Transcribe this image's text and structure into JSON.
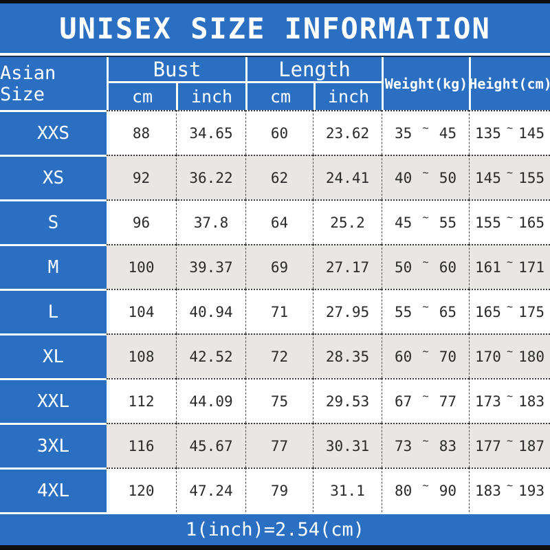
{
  "title": "UNISEX SIZE INFORMATION",
  "footer_note": "1(inch)=2.54(cm)",
  "symbols": {
    "tilde": "~"
  },
  "colors": {
    "primary_blue": "#2b6fc3",
    "row_alt_gray": "#e8e7e4",
    "bar_black": "#0d0d0d",
    "text_white": "#ffffff",
    "text_dark": "#2a2a2a"
  },
  "table": {
    "headers": {
      "asian_size": "Asian Size",
      "bust": "Bust",
      "length": "Length",
      "weight": "Weight(kg)",
      "height": "Height(cm)",
      "unit_cm": "cm",
      "unit_inch": "inch"
    },
    "rows": [
      {
        "size": "XXS",
        "bust_cm": "88",
        "bust_inch": "34.65",
        "length_cm": "60",
        "length_inch": "23.62",
        "weight_min": "35",
        "weight_max": "45",
        "height_min": "135",
        "height_max": "145"
      },
      {
        "size": "XS",
        "bust_cm": "92",
        "bust_inch": "36.22",
        "length_cm": "62",
        "length_inch": "24.41",
        "weight_min": "40",
        "weight_max": "50",
        "height_min": "145",
        "height_max": "155"
      },
      {
        "size": "S",
        "bust_cm": "96",
        "bust_inch": "37.8",
        "length_cm": "64",
        "length_inch": "25.2",
        "weight_min": "45",
        "weight_max": "55",
        "height_min": "155",
        "height_max": "165"
      },
      {
        "size": "M",
        "bust_cm": "100",
        "bust_inch": "39.37",
        "length_cm": "69",
        "length_inch": "27.17",
        "weight_min": "50",
        "weight_max": "60",
        "height_min": "161",
        "height_max": "171"
      },
      {
        "size": "L",
        "bust_cm": "104",
        "bust_inch": "40.94",
        "length_cm": "71",
        "length_inch": "27.95",
        "weight_min": "55",
        "weight_max": "65",
        "height_min": "165",
        "height_max": "175"
      },
      {
        "size": "XL",
        "bust_cm": "108",
        "bust_inch": "42.52",
        "length_cm": "72",
        "length_inch": "28.35",
        "weight_min": "60",
        "weight_max": "70",
        "height_min": "170",
        "height_max": "180"
      },
      {
        "size": "XXL",
        "bust_cm": "112",
        "bust_inch": "44.09",
        "length_cm": "75",
        "length_inch": "29.53",
        "weight_min": "67",
        "weight_max": "77",
        "height_min": "173",
        "height_max": "183"
      },
      {
        "size": "3XL",
        "bust_cm": "116",
        "bust_inch": "45.67",
        "length_cm": "77",
        "length_inch": "30.31",
        "weight_min": "73",
        "weight_max": "83",
        "height_min": "177",
        "height_max": "187"
      },
      {
        "size": "4XL",
        "bust_cm": "120",
        "bust_inch": "47.24",
        "length_cm": "79",
        "length_inch": "31.1",
        "weight_min": "80",
        "weight_max": "90",
        "height_min": "183",
        "height_max": "193"
      }
    ]
  }
}
